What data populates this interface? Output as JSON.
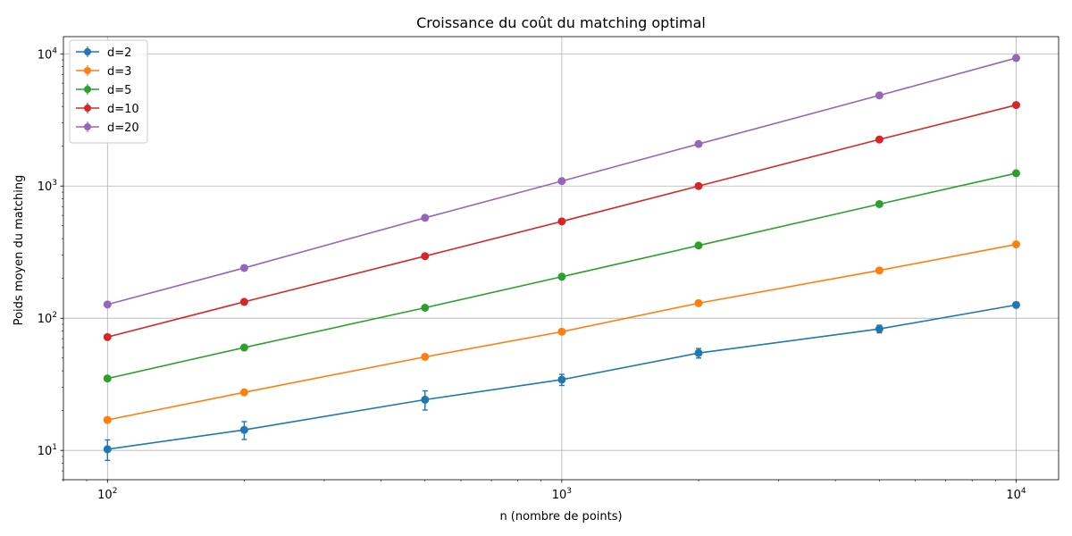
{
  "chart_data": {
    "type": "line",
    "title": "Croissance du coût du matching optimal",
    "xlabel": "n (nombre de points)",
    "ylabel": "Poids moyen du matching",
    "xscale": "log",
    "yscale": "log",
    "xlim": [
      80,
      12400
    ],
    "ylim": [
      6,
      13500
    ],
    "grid": true,
    "legend_position": "top-left",
    "x": [
      100,
      200,
      500,
      1000,
      2000,
      5000,
      10000
    ],
    "x_ticks": [
      {
        "value": 100,
        "base": "10",
        "exp": "2"
      },
      {
        "value": 1000,
        "base": "10",
        "exp": "3"
      },
      {
        "value": 10000,
        "base": "10",
        "exp": "4"
      }
    ],
    "y_ticks": [
      {
        "value": 10,
        "base": "10",
        "exp": "1"
      },
      {
        "value": 100,
        "base": "10",
        "exp": "2"
      },
      {
        "value": 1000,
        "base": "10",
        "exp": "3"
      },
      {
        "value": 10000,
        "base": "10",
        "exp": "4"
      }
    ],
    "series": [
      {
        "name": "d=2",
        "color": "#1f77b4",
        "values": [
          10.2,
          14.3,
          24.2,
          34.3,
          54.5,
          83.0,
          126.0
        ],
        "errors": [
          1.8,
          2.2,
          4.0,
          3.3,
          4.5,
          5.5,
          6.0
        ]
      },
      {
        "name": "d=3",
        "color": "#ff7f0e",
        "values": [
          17.0,
          27.5,
          51.0,
          79.0,
          130.0,
          230.0,
          362.0
        ],
        "errors": [
          0.8,
          1.0,
          1.5,
          1.8,
          2.5,
          4.0,
          6.0
        ]
      },
      {
        "name": "d=5",
        "color": "#2ca02c",
        "values": [
          35.0,
          60.0,
          120.0,
          206.0,
          355.0,
          730.0,
          1250.0
        ],
        "errors": [
          1.0,
          1.2,
          2.0,
          3.0,
          4.0,
          6.0,
          10.0
        ]
      },
      {
        "name": "d=10",
        "color": "#d62728",
        "values": [
          72.0,
          133.0,
          295.0,
          540.0,
          1000.0,
          2250.0,
          4100.0
        ],
        "errors": [
          1.5,
          2.0,
          3.0,
          5.0,
          8.0,
          15.0,
          25.0
        ]
      },
      {
        "name": "d=20",
        "color": "#9467bd",
        "values": [
          127.0,
          240.0,
          575.0,
          1090.0,
          2080.0,
          4850.0,
          9300.0
        ],
        "errors": [
          2.0,
          3.0,
          5.0,
          8.0,
          12.0,
          25.0,
          50.0
        ]
      }
    ]
  }
}
